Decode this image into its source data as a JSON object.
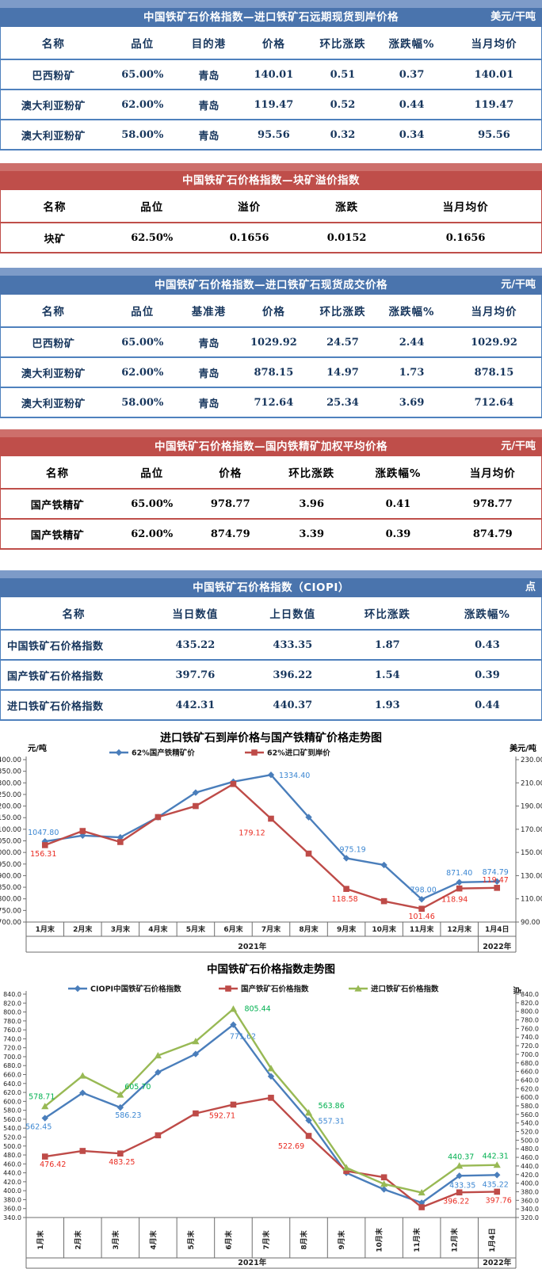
{
  "tables": [
    {
      "title": "中国铁矿石价格指数—进口铁矿石远期现货到岸价格",
      "unit": "美元/干吨",
      "columns": [
        "名称",
        "品位",
        "目的港",
        "价格",
        "环比涨跌",
        "涨跌幅%",
        "当月均价"
      ],
      "rows": [
        [
          "巴西粉矿",
          "65.00%",
          "青岛",
          "140.01",
          "0.51",
          "0.37",
          "140.01"
        ],
        [
          "澳大利亚粉矿",
          "62.00%",
          "青岛",
          "119.47",
          "0.52",
          "0.44",
          "119.47"
        ],
        [
          "澳大利亚粉矿",
          "58.00%",
          "青岛",
          "95.56",
          "0.32",
          "0.34",
          "95.56"
        ]
      ]
    },
    {
      "title": "中国铁矿石价格指数—块矿溢价指数",
      "unit": "",
      "columns": [
        "名称",
        "品位",
        "溢价",
        "涨跌",
        "当月均价"
      ],
      "rows": [
        [
          "块矿",
          "62.50%",
          "0.1656",
          "0.0152",
          "0.1656"
        ]
      ]
    },
    {
      "title": "中国铁矿石价格指数—进口铁矿石现货成交价格",
      "unit": "元/干吨",
      "columns": [
        "名称",
        "品位",
        "基准港",
        "价格",
        "环比涨跌",
        "涨跌幅%",
        "当月均价"
      ],
      "rows": [
        [
          "巴西粉矿",
          "65.00%",
          "青岛",
          "1029.92",
          "24.57",
          "2.44",
          "1029.92"
        ],
        [
          "澳大利亚粉矿",
          "62.00%",
          "青岛",
          "878.15",
          "14.97",
          "1.73",
          "878.15"
        ],
        [
          "澳大利亚粉矿",
          "58.00%",
          "青岛",
          "712.64",
          "25.34",
          "3.69",
          "712.64"
        ]
      ]
    },
    {
      "title": "中国铁矿石价格指数—国内铁精矿加权平均价格",
      "unit": "元/干吨",
      "columns": [
        "名称",
        "品位",
        "价格",
        "环比涨跌",
        "涨跌幅%",
        "当月均价"
      ],
      "rows": [
        [
          "国产铁精矿",
          "65.00%",
          "978.77",
          "3.96",
          "0.41",
          "978.77"
        ],
        [
          "国产铁精矿",
          "62.00%",
          "874.79",
          "3.39",
          "0.39",
          "874.79"
        ]
      ]
    },
    {
      "title": "中国铁矿石价格指数（CIOPI）",
      "unit": "点",
      "columns": [
        "名称",
        "当日数值",
        "上日数值",
        "环比涨跌",
        "涨跌幅%"
      ],
      "rows": [
        [
          "中国铁矿石价格指数",
          "435.22",
          "433.35",
          "1.87",
          "0.43"
        ],
        [
          "国产铁矿石价格指数",
          "397.76",
          "396.22",
          "1.54",
          "0.39"
        ],
        [
          "进口铁矿石价格指数",
          "442.31",
          "440.37",
          "1.93",
          "0.44"
        ]
      ]
    }
  ],
  "chart_data": [
    {
      "type": "line",
      "title": "进口铁矿石到岸价格与国产铁精矿价格走势图",
      "left_axis": {
        "label": "元/吨",
        "min": 700,
        "max": 1400,
        "step": 50,
        "decimals": 2
      },
      "right_axis": {
        "label": "美元/吨",
        "min": 90,
        "max": 230,
        "step": 20,
        "decimals": 2
      },
      "categories": [
        "1月末",
        "2月末",
        "3月末",
        "4月末",
        "5月末",
        "6月末",
        "7月末",
        "8月末",
        "9月末",
        "10月末",
        "11月末",
        "12月末",
        "1月4日"
      ],
      "year_groups": [
        {
          "label": "2021年",
          "span": 12
        },
        {
          "label": "2022年",
          "span": 1
        }
      ],
      "series": [
        {
          "name": "62%国产铁精矿价",
          "axis": "left",
          "marker": "diamond",
          "color": "#4a7ebb",
          "label_color": "#3c87d2",
          "values": [
            1047.8,
            1073,
            1065,
            1152,
            1258,
            1305,
            1334.4,
            1152,
            975.19,
            946,
            798.0,
            871.4,
            874.79
          ],
          "labeled": [
            {
              "i": 0,
              "dx": -2,
              "dy": -8
            },
            {
              "i": 6,
              "dx": 10,
              "dy": 4,
              "a": "start"
            },
            {
              "i": 8,
              "dx": 8,
              "dy": -8
            },
            {
              "i": 10,
              "dx": 2,
              "dy": -9
            },
            {
              "i": 11,
              "dx": 0,
              "dy": -9
            },
            {
              "i": 12,
              "dx": -2,
              "dy": -9
            }
          ]
        },
        {
          "name": "62%进口矿到岸价",
          "axis": "right",
          "marker": "square",
          "color": "#be4b48",
          "label_color": "#e92a20",
          "values": [
            156.31,
            168.5,
            159,
            180.5,
            190,
            209,
            179.12,
            149,
            118.58,
            108,
            101.46,
            118.94,
            119.47
          ],
          "labeled": [
            {
              "i": 0,
              "dx": -2,
              "dy": 14
            },
            {
              "i": 6,
              "dx": -24,
              "dy": 21
            },
            {
              "i": 8,
              "dx": -2,
              "dy": 16
            },
            {
              "i": 10,
              "dx": 0,
              "dy": 13
            },
            {
              "i": 11,
              "dx": -6,
              "dy": 17
            },
            {
              "i": 12,
              "dx": -2,
              "dy": -7
            }
          ]
        }
      ]
    },
    {
      "type": "line",
      "title": "中国铁矿石价格指数走势图",
      "left_axis": {
        "label": "",
        "min": 340,
        "max": 840,
        "step": 20,
        "decimals": 1
      },
      "right_axis": {
        "label": "点",
        "min": 320,
        "max": 840,
        "step": 20,
        "decimals": 1
      },
      "categories": [
        "1月末",
        "2月末",
        "3月末",
        "4月末",
        "5月末",
        "6月末",
        "7月末",
        "8月末",
        "9月末",
        "10月末",
        "11月末",
        "12月末",
        "1月4日"
      ],
      "year_groups": [
        {
          "label": "2021年",
          "span": 12
        },
        {
          "label": "2022年",
          "span": 1
        }
      ],
      "series": [
        {
          "name": "CIOPI中国铁矿石价格指数",
          "axis": "left",
          "marker": "diamond",
          "color": "#4a7ebb",
          "label_color": "#3c87d2",
          "values": [
            562.45,
            619,
            586.23,
            665,
            706,
            771.62,
            656,
            557.31,
            440,
            403,
            373,
            433.35,
            435.22
          ],
          "labeled": [
            {
              "i": 0,
              "dx": -8,
              "dy": 14
            },
            {
              "i": 2,
              "dx": 10,
              "dy": 13
            },
            {
              "i": 5,
              "dx": 12,
              "dy": 18
            },
            {
              "i": 7,
              "dx": 12,
              "dy": 4,
              "a": "start"
            },
            {
              "i": 11,
              "dx": 4,
              "dy": 15
            },
            {
              "i": 12,
              "dx": -2,
              "dy": 15
            }
          ]
        },
        {
          "name": "国产铁矿石价格指数",
          "axis": "left",
          "marker": "square",
          "color": "#be4b48",
          "label_color": "#e92a20",
          "values": [
            476.42,
            489,
            483.25,
            524,
            573,
            592.71,
            608,
            522.69,
            444,
            430,
            363,
            396.22,
            397.76
          ],
          "labeled": [
            {
              "i": 0,
              "dx": 10,
              "dy": 13
            },
            {
              "i": 2,
              "dx": 2,
              "dy": 14
            },
            {
              "i": 5,
              "dx": -14,
              "dy": 17
            },
            {
              "i": 7,
              "dx": -22,
              "dy": 16
            },
            {
              "i": 11,
              "dx": -4,
              "dy": 14
            },
            {
              "i": 12,
              "dx": 2,
              "dy": 14
            }
          ]
        },
        {
          "name": "进口铁矿石价格指数",
          "axis": "right",
          "marker": "triangle",
          "color": "#98b954",
          "label_color": "#00b050",
          "values": [
            578.71,
            650,
            605.7,
            697,
            730,
            805.44,
            667,
            563.86,
            436,
            398,
            378,
            440.37,
            442.31
          ],
          "labeled": [
            {
              "i": 0,
              "dx": -4,
              "dy": -9
            },
            {
              "i": 2,
              "dx": 22,
              "dy": -7
            },
            {
              "i": 5,
              "dx": 14,
              "dy": 3,
              "a": "start"
            },
            {
              "i": 7,
              "dx": 12,
              "dy": -6,
              "a": "start"
            },
            {
              "i": 11,
              "dx": 2,
              "dy": -8
            },
            {
              "i": 12,
              "dx": -2,
              "dy": -8
            }
          ]
        }
      ]
    }
  ]
}
